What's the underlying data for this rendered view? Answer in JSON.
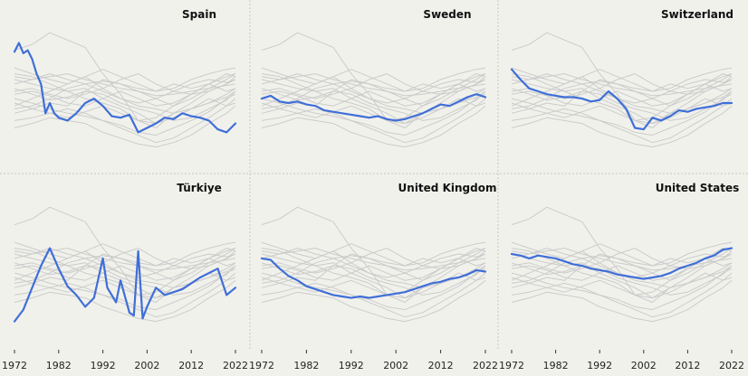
{
  "chart_data": {
    "type": "line",
    "layout": "small-multiples 2x3",
    "title": "",
    "xlabel": "",
    "ylabel": "",
    "xlim": [
      1972,
      2022
    ],
    "x_ticks": [
      1972,
      1982,
      1992,
      2002,
      2012,
      2022
    ],
    "y_axis_labels": "none shown",
    "grid": false,
    "legend": "none",
    "colors": {
      "highlight": "#3f6fd8",
      "background_series": "#cbcbcb",
      "panel_bg": "#f1f1ec"
    },
    "background_note": "Each panel repeats the same set of grey comparison series; the named country is highlighted in blue.",
    "background_series": [
      [
        [
          1972,
          0.78
        ],
        [
          1976,
          0.82
        ],
        [
          1980,
          0.9
        ],
        [
          1984,
          0.85
        ],
        [
          1988,
          0.8
        ],
        [
          1992,
          0.62
        ],
        [
          1996,
          0.48
        ],
        [
          2000,
          0.3
        ],
        [
          2004,
          0.25
        ],
        [
          2008,
          0.35
        ],
        [
          2012,
          0.38
        ],
        [
          2016,
          0.45
        ],
        [
          2020,
          0.4
        ],
        [
          2022,
          0.42
        ]
      ],
      [
        [
          1972,
          0.62
        ],
        [
          1976,
          0.6
        ],
        [
          1980,
          0.55
        ],
        [
          1984,
          0.5
        ],
        [
          1988,
          0.52
        ],
        [
          1992,
          0.45
        ],
        [
          1996,
          0.4
        ],
        [
          2000,
          0.35
        ],
        [
          2004,
          0.28
        ],
        [
          2008,
          0.35
        ],
        [
          2012,
          0.42
        ],
        [
          2016,
          0.5
        ],
        [
          2020,
          0.55
        ],
        [
          2022,
          0.58
        ]
      ],
      [
        [
          1972,
          0.35
        ],
        [
          1976,
          0.38
        ],
        [
          1980,
          0.42
        ],
        [
          1984,
          0.4
        ],
        [
          1988,
          0.5
        ],
        [
          1992,
          0.58
        ],
        [
          1996,
          0.55
        ],
        [
          2000,
          0.5
        ],
        [
          2004,
          0.45
        ],
        [
          2008,
          0.4
        ],
        [
          2012,
          0.48
        ],
        [
          2016,
          0.55
        ],
        [
          2020,
          0.62
        ],
        [
          2022,
          0.6
        ]
      ],
      [
        [
          1972,
          0.55
        ],
        [
          1976,
          0.58
        ],
        [
          1980,
          0.6
        ],
        [
          1984,
          0.62
        ],
        [
          1988,
          0.58
        ],
        [
          1992,
          0.55
        ],
        [
          1996,
          0.52
        ],
        [
          2000,
          0.5
        ],
        [
          2004,
          0.47
        ],
        [
          2008,
          0.48
        ],
        [
          2012,
          0.5
        ],
        [
          2016,
          0.52
        ],
        [
          2020,
          0.54
        ],
        [
          2022,
          0.55
        ]
      ],
      [
        [
          1972,
          0.45
        ],
        [
          1976,
          0.42
        ],
        [
          1980,
          0.38
        ],
        [
          1984,
          0.35
        ],
        [
          1988,
          0.33
        ],
        [
          1992,
          0.3
        ],
        [
          1996,
          0.27
        ],
        [
          2000,
          0.22
        ],
        [
          2004,
          0.2
        ],
        [
          2008,
          0.25
        ],
        [
          2012,
          0.3
        ],
        [
          2016,
          0.36
        ],
        [
          2020,
          0.45
        ],
        [
          2022,
          0.48
        ]
      ],
      [
        [
          1972,
          0.5
        ],
        [
          1976,
          0.52
        ],
        [
          1980,
          0.48
        ],
        [
          1984,
          0.45
        ],
        [
          1988,
          0.48
        ],
        [
          1992,
          0.52
        ],
        [
          1996,
          0.58
        ],
        [
          2000,
          0.62
        ],
        [
          2004,
          0.55
        ],
        [
          2008,
          0.5
        ],
        [
          2012,
          0.48
        ],
        [
          2016,
          0.5
        ],
        [
          2020,
          0.55
        ],
        [
          2022,
          0.6
        ]
      ],
      [
        [
          1972,
          0.4
        ],
        [
          1976,
          0.45
        ],
        [
          1980,
          0.5
        ],
        [
          1984,
          0.55
        ],
        [
          1988,
          0.6
        ],
        [
          1992,
          0.52
        ],
        [
          1996,
          0.45
        ],
        [
          2000,
          0.4
        ],
        [
          2004,
          0.38
        ],
        [
          2008,
          0.35
        ],
        [
          2012,
          0.38
        ],
        [
          2016,
          0.42
        ],
        [
          2020,
          0.48
        ],
        [
          2022,
          0.52
        ]
      ],
      [
        [
          1972,
          0.3
        ],
        [
          1976,
          0.32
        ],
        [
          1980,
          0.35
        ],
        [
          1984,
          0.38
        ],
        [
          1988,
          0.35
        ],
        [
          1992,
          0.3
        ],
        [
          1996,
          0.25
        ],
        [
          2000,
          0.2
        ],
        [
          2004,
          0.15
        ],
        [
          2008,
          0.18
        ],
        [
          2012,
          0.25
        ],
        [
          2016,
          0.32
        ],
        [
          2020,
          0.4
        ],
        [
          2022,
          0.45
        ]
      ],
      [
        [
          1972,
          0.58
        ],
        [
          1976,
          0.55
        ],
        [
          1980,
          0.52
        ],
        [
          1984,
          0.5
        ],
        [
          1988,
          0.45
        ],
        [
          1992,
          0.42
        ],
        [
          1996,
          0.38
        ],
        [
          2000,
          0.3
        ],
        [
          2004,
          0.32
        ],
        [
          2008,
          0.4
        ],
        [
          2012,
          0.45
        ],
        [
          2016,
          0.52
        ],
        [
          2020,
          0.58
        ],
        [
          2022,
          0.62
        ]
      ],
      [
        [
          1972,
          0.48
        ],
        [
          1976,
          0.5
        ],
        [
          1980,
          0.47
        ],
        [
          1984,
          0.42
        ],
        [
          1988,
          0.4
        ],
        [
          1992,
          0.45
        ],
        [
          1996,
          0.5
        ],
        [
          2000,
          0.45
        ],
        [
          2004,
          0.4
        ],
        [
          2008,
          0.42
        ],
        [
          2012,
          0.48
        ],
        [
          2016,
          0.55
        ],
        [
          2020,
          0.5
        ],
        [
          2022,
          0.52
        ]
      ],
      [
        [
          1972,
          0.25
        ],
        [
          1976,
          0.28
        ],
        [
          1980,
          0.32
        ],
        [
          1984,
          0.3
        ],
        [
          1988,
          0.28
        ],
        [
          1992,
          0.22
        ],
        [
          1996,
          0.18
        ],
        [
          2000,
          0.14
        ],
        [
          2004,
          0.12
        ],
        [
          2008,
          0.15
        ],
        [
          2012,
          0.2
        ],
        [
          2016,
          0.28
        ],
        [
          2020,
          0.35
        ],
        [
          2022,
          0.4
        ]
      ],
      [
        [
          1972,
          0.66
        ],
        [
          1976,
          0.62
        ],
        [
          1980,
          0.58
        ],
        [
          1984,
          0.55
        ],
        [
          1988,
          0.6
        ],
        [
          1992,
          0.65
        ],
        [
          1996,
          0.6
        ],
        [
          2000,
          0.55
        ],
        [
          2004,
          0.5
        ],
        [
          2008,
          0.52
        ],
        [
          2012,
          0.58
        ],
        [
          2016,
          0.62
        ],
        [
          2020,
          0.65
        ],
        [
          2022,
          0.66
        ]
      ],
      [
        [
          1972,
          0.52
        ],
        [
          1976,
          0.48
        ],
        [
          1980,
          0.44
        ],
        [
          1984,
          0.46
        ],
        [
          1988,
          0.5
        ],
        [
          1992,
          0.48
        ],
        [
          1996,
          0.42
        ],
        [
          2000,
          0.38
        ],
        [
          2004,
          0.35
        ],
        [
          2008,
          0.3
        ],
        [
          2012,
          0.32
        ],
        [
          2016,
          0.38
        ],
        [
          2020,
          0.44
        ],
        [
          2022,
          0.5
        ]
      ],
      [
        [
          1972,
          0.38
        ],
        [
          1976,
          0.4
        ],
        [
          1980,
          0.45
        ],
        [
          1984,
          0.52
        ],
        [
          1988,
          0.55
        ],
        [
          1992,
          0.5
        ],
        [
          1996,
          0.45
        ],
        [
          2000,
          0.42
        ],
        [
          2004,
          0.45
        ],
        [
          2008,
          0.5
        ],
        [
          2012,
          0.55
        ],
        [
          2016,
          0.58
        ],
        [
          2020,
          0.56
        ],
        [
          2022,
          0.58
        ]
      ],
      [
        [
          1972,
          0.6
        ],
        [
          1976,
          0.58
        ],
        [
          1980,
          0.62
        ],
        [
          1984,
          0.58
        ],
        [
          1988,
          0.55
        ],
        [
          1992,
          0.57
        ],
        [
          1996,
          0.55
        ],
        [
          2000,
          0.52
        ],
        [
          2004,
          0.5
        ],
        [
          2008,
          0.55
        ],
        [
          2012,
          0.52
        ],
        [
          2016,
          0.55
        ],
        [
          2020,
          0.6
        ],
        [
          2022,
          0.62
        ]
      ],
      [
        [
          1972,
          0.42
        ],
        [
          1976,
          0.38
        ],
        [
          1980,
          0.35
        ],
        [
          1984,
          0.32
        ],
        [
          1988,
          0.36
        ],
        [
          1992,
          0.4
        ],
        [
          1996,
          0.35
        ],
        [
          2000,
          0.3
        ],
        [
          2004,
          0.28
        ],
        [
          2008,
          0.32
        ],
        [
          2012,
          0.38
        ],
        [
          2016,
          0.42
        ],
        [
          2020,
          0.46
        ],
        [
          2022,
          0.5
        ]
      ]
    ],
    "series": [
      {
        "name": "Spain",
        "x": [
          1972,
          1973,
          1974,
          1975,
          1976,
          1977,
          1978,
          1979,
          1980,
          1981,
          1982,
          1984,
          1986,
          1988,
          1990,
          1992,
          1994,
          1996,
          1998,
          2000,
          2002,
          2004,
          2006,
          2008,
          2010,
          2012,
          2014,
          2016,
          2018,
          2020,
          2022
        ],
        "values": [
          0.77,
          0.83,
          0.76,
          0.78,
          0.72,
          0.62,
          0.55,
          0.35,
          0.42,
          0.35,
          0.32,
          0.3,
          0.35,
          0.42,
          0.45,
          0.4,
          0.33,
          0.32,
          0.34,
          0.22,
          0.25,
          0.28,
          0.32,
          0.31,
          0.35,
          0.33,
          0.32,
          0.3,
          0.24,
          0.22,
          0.28
        ]
      },
      {
        "name": "Sweden",
        "x": [
          1972,
          1974,
          1976,
          1978,
          1980,
          1982,
          1984,
          1986,
          1988,
          1990,
          1992,
          1994,
          1996,
          1998,
          2000,
          2002,
          2004,
          2006,
          2008,
          2010,
          2012,
          2014,
          2016,
          2018,
          2020,
          2022
        ],
        "values": [
          0.45,
          0.47,
          0.43,
          0.42,
          0.43,
          0.41,
          0.4,
          0.37,
          0.36,
          0.35,
          0.34,
          0.33,
          0.32,
          0.33,
          0.31,
          0.3,
          0.31,
          0.33,
          0.35,
          0.38,
          0.41,
          0.4,
          0.43,
          0.46,
          0.48,
          0.46
        ]
      },
      {
        "name": "Switzerland",
        "x": [
          1972,
          1974,
          1976,
          1978,
          1980,
          1982,
          1984,
          1986,
          1988,
          1990,
          1992,
          1994,
          1996,
          1998,
          2000,
          2002,
          2004,
          2006,
          2008,
          2010,
          2012,
          2014,
          2016,
          2018,
          2020,
          2022
        ],
        "values": [
          0.65,
          0.58,
          0.52,
          0.5,
          0.48,
          0.47,
          0.46,
          0.46,
          0.45,
          0.43,
          0.44,
          0.5,
          0.45,
          0.38,
          0.25,
          0.24,
          0.32,
          0.3,
          0.33,
          0.37,
          0.36,
          0.38,
          0.39,
          0.4,
          0.42,
          0.42
        ]
      },
      {
        "name": "Türkiye",
        "x": [
          1972,
          1974,
          1976,
          1978,
          1980,
          1982,
          1984,
          1986,
          1988,
          1990,
          1992,
          1993,
          1995,
          1996,
          1998,
          1999,
          2000,
          2001,
          2002,
          2004,
          2006,
          2008,
          2010,
          2012,
          2014,
          2016,
          2018,
          2020,
          2022
        ],
        "values": [
          0.12,
          0.2,
          0.35,
          0.5,
          0.62,
          0.48,
          0.36,
          0.3,
          0.22,
          0.28,
          0.55,
          0.35,
          0.25,
          0.4,
          0.18,
          0.16,
          0.6,
          0.14,
          0.22,
          0.35,
          0.3,
          0.32,
          0.34,
          0.38,
          0.42,
          0.45,
          0.48,
          0.3,
          0.35
        ]
      },
      {
        "name": "United Kingdom",
        "x": [
          1972,
          1974,
          1976,
          1978,
          1980,
          1982,
          1984,
          1986,
          1988,
          1990,
          1992,
          1994,
          1996,
          1998,
          2000,
          2002,
          2004,
          2006,
          2008,
          2010,
          2012,
          2014,
          2016,
          2018,
          2020,
          2022
        ],
        "values": [
          0.55,
          0.54,
          0.48,
          0.43,
          0.4,
          0.36,
          0.34,
          0.32,
          0.3,
          0.29,
          0.28,
          0.29,
          0.28,
          0.29,
          0.3,
          0.31,
          0.32,
          0.34,
          0.36,
          0.38,
          0.39,
          0.41,
          0.42,
          0.44,
          0.47,
          0.46
        ]
      },
      {
        "name": "United States",
        "x": [
          1972,
          1974,
          1976,
          1978,
          1980,
          1982,
          1984,
          1986,
          1988,
          1990,
          1992,
          1994,
          1996,
          1998,
          2000,
          2002,
          2004,
          2006,
          2008,
          2010,
          2012,
          2014,
          2016,
          2018,
          2020,
          2022
        ],
        "values": [
          0.58,
          0.57,
          0.55,
          0.57,
          0.56,
          0.55,
          0.53,
          0.51,
          0.5,
          0.48,
          0.47,
          0.46,
          0.44,
          0.43,
          0.42,
          0.41,
          0.42,
          0.43,
          0.45,
          0.48,
          0.5,
          0.52,
          0.55,
          0.57,
          0.61,
          0.62
        ]
      }
    ]
  }
}
